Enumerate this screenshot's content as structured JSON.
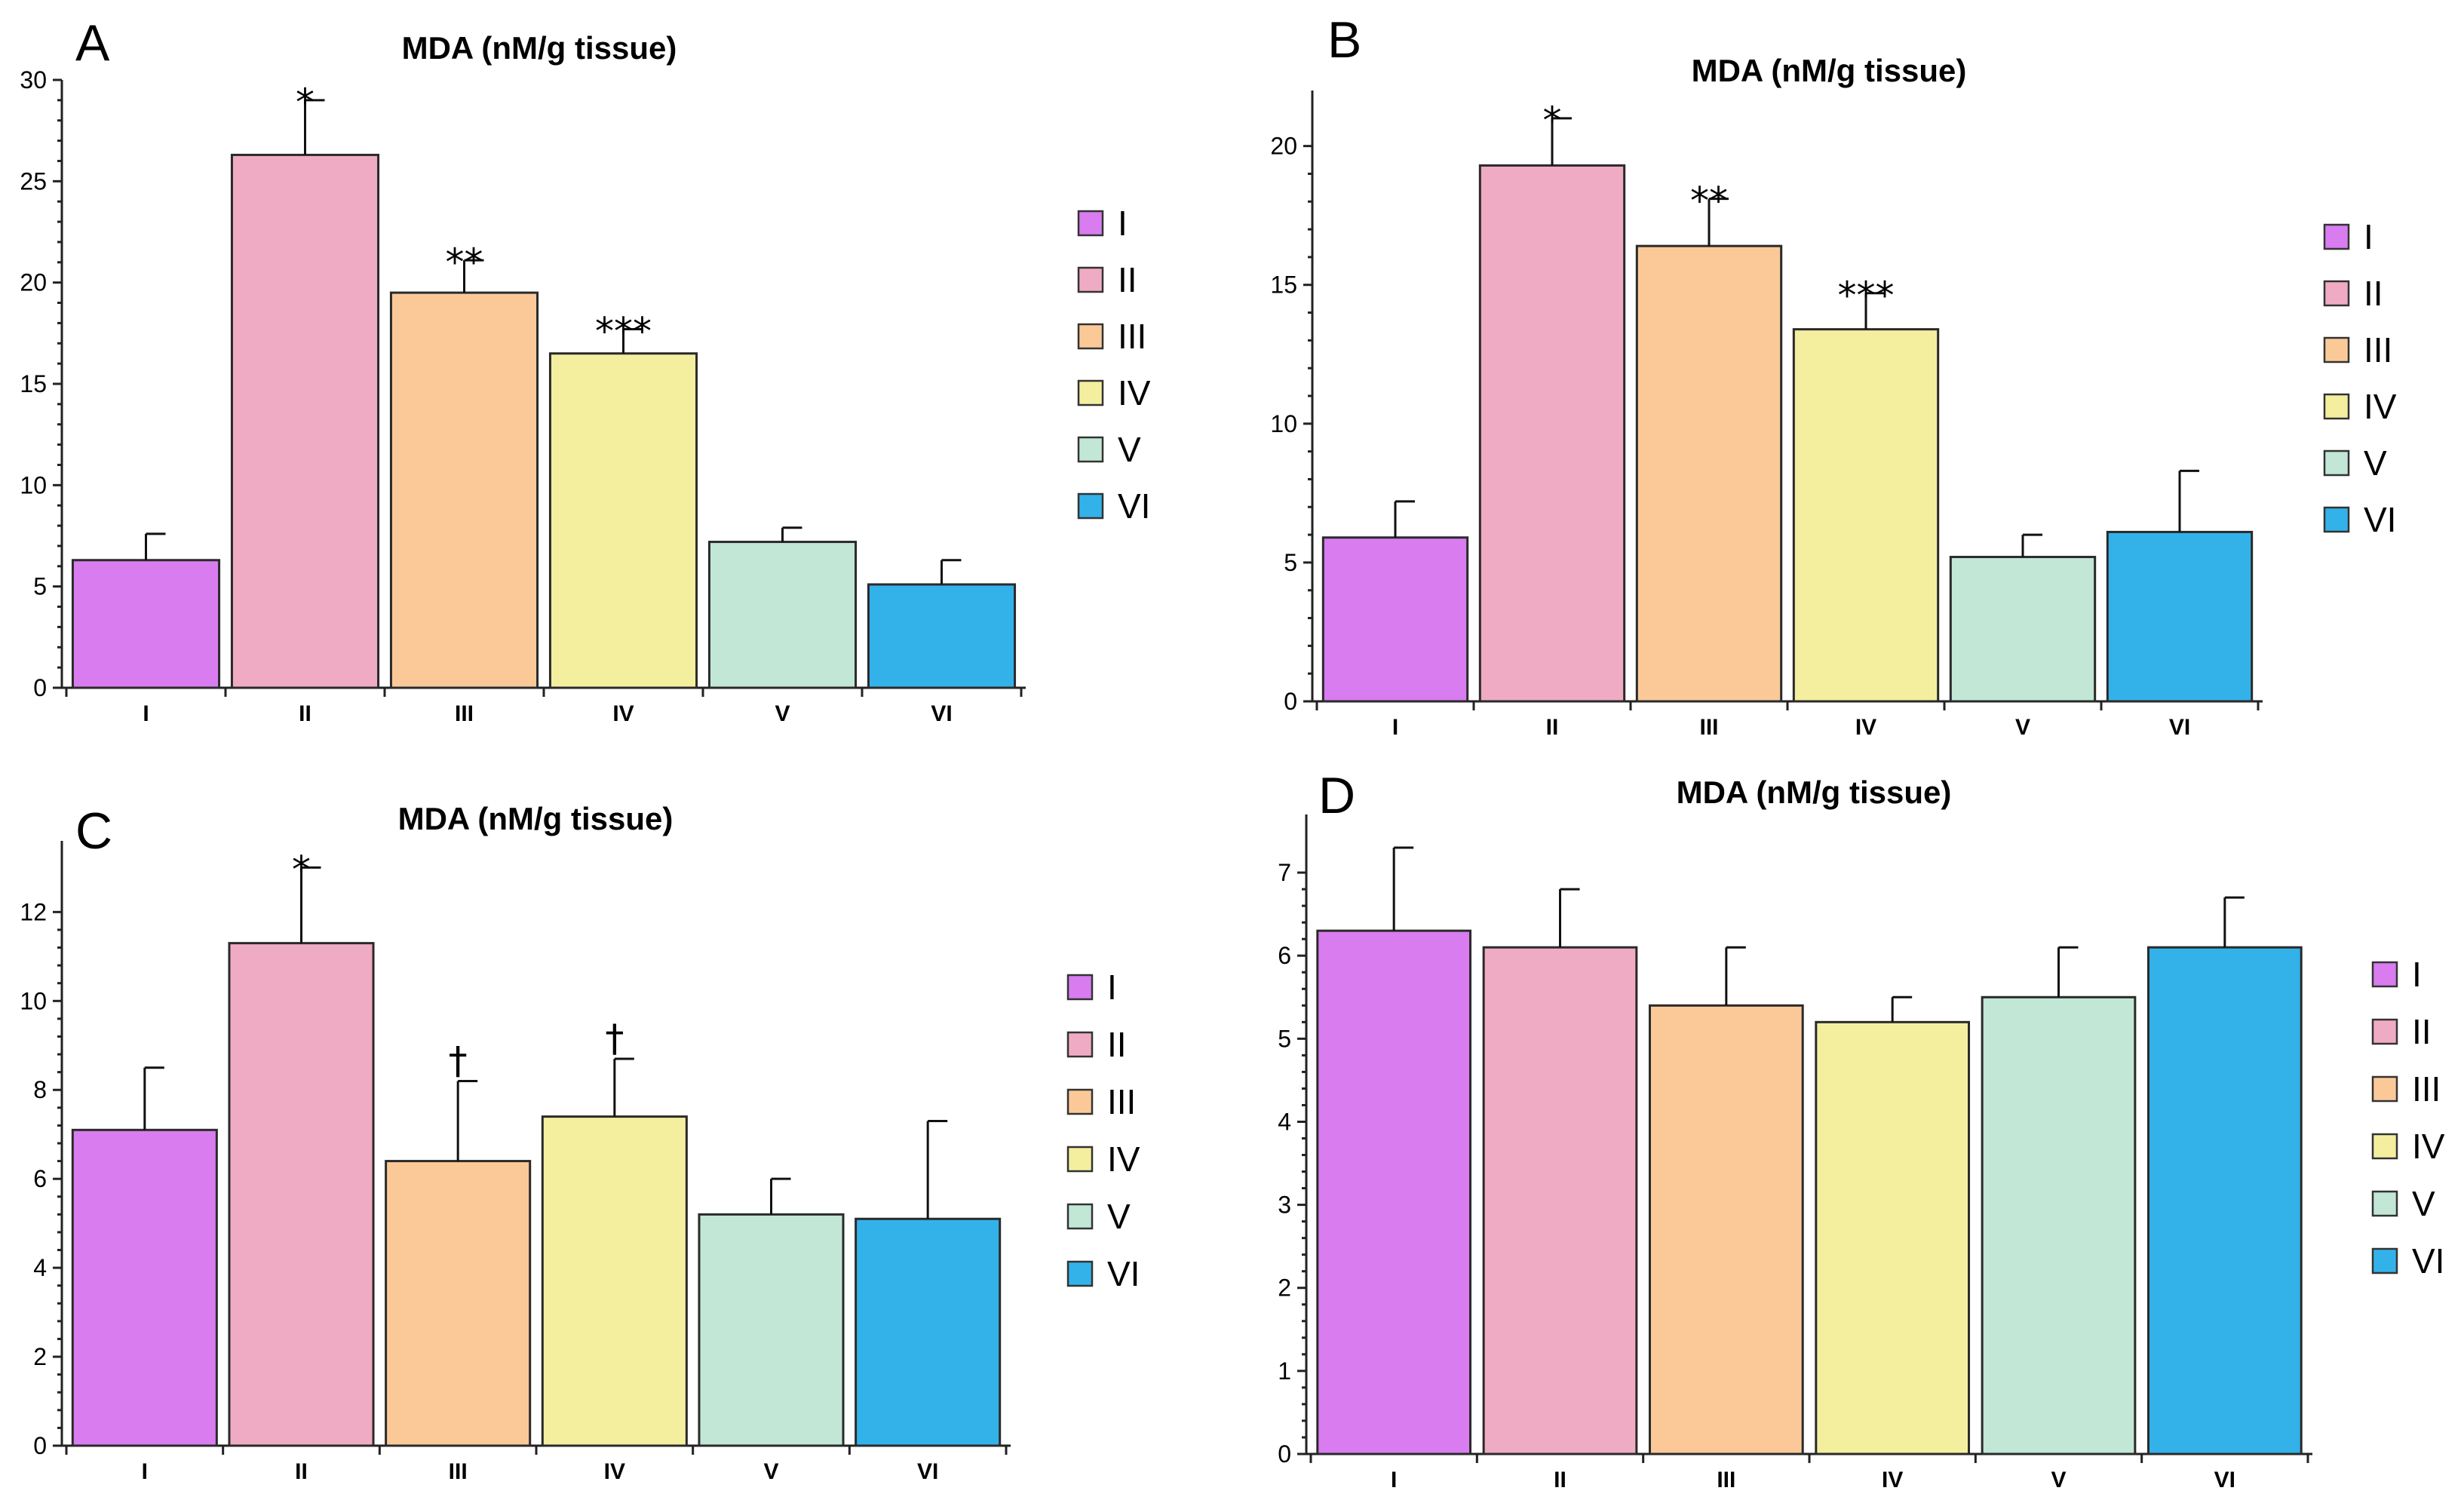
{
  "colors": {
    "I": "#d87cf0",
    "II": "#f0abc4",
    "III": "#fbc998",
    "IV": "#f4ef9e",
    "V": "#c2e7d6",
    "VI": "#33b2ea"
  },
  "chart_data": [
    {
      "panel": "A",
      "type": "bar",
      "title": "MDA (nM/g tissue)",
      "xlabel": "",
      "ylabel": "",
      "categories": [
        "I",
        "II",
        "III",
        "IV",
        "V",
        "VI"
      ],
      "values": [
        6.3,
        26.3,
        19.5,
        16.5,
        7.2,
        5.1
      ],
      "errors": [
        1.3,
        2.7,
        1.6,
        1.2,
        0.7,
        1.2
      ],
      "significance": [
        "",
        "*",
        "**",
        "***",
        "",
        ""
      ],
      "ylim": [
        0,
        30
      ],
      "yticks": [
        0,
        5,
        10,
        15,
        20,
        25,
        30
      ],
      "legend": [
        "I",
        "II",
        "III",
        "IV",
        "V",
        "VI"
      ],
      "legend_position": "right"
    },
    {
      "panel": "B",
      "type": "bar",
      "title": "MDA (nM/g tissue)",
      "xlabel": "",
      "ylabel": "",
      "categories": [
        "I",
        "II",
        "III",
        "IV",
        "V",
        "VI"
      ],
      "values": [
        5.9,
        19.3,
        16.4,
        13.4,
        5.2,
        6.1
      ],
      "errors": [
        1.3,
        1.7,
        1.7,
        1.3,
        0.8,
        2.2
      ],
      "significance": [
        "",
        "*",
        "**",
        "***",
        "",
        ""
      ],
      "ylim": [
        0,
        22
      ],
      "yticks": [
        0,
        5,
        10,
        15,
        20
      ],
      "legend": [
        "I",
        "II",
        "III",
        "IV",
        "V",
        "VI"
      ],
      "legend_position": "right"
    },
    {
      "panel": "C",
      "type": "bar",
      "title": "MDA (nM/g tissue)",
      "xlabel": "",
      "ylabel": "",
      "categories": [
        "I",
        "II",
        "III",
        "IV",
        "V",
        "VI"
      ],
      "values": [
        7.1,
        11.3,
        6.4,
        7.4,
        5.2,
        5.1
      ],
      "errors": [
        1.4,
        1.7,
        1.8,
        1.3,
        0.8,
        2.2
      ],
      "significance": [
        "",
        "*",
        "†",
        "†",
        "",
        ""
      ],
      "ylim": [
        0,
        13.6
      ],
      "yticks": [
        0,
        2,
        4,
        6,
        8,
        10,
        12
      ],
      "legend": [
        "I",
        "II",
        "III",
        "IV",
        "V",
        "VI"
      ],
      "legend_position": "right"
    },
    {
      "panel": "D",
      "type": "bar",
      "title": "MDA (nM/g tissue)",
      "xlabel": "",
      "ylabel": "",
      "categories": [
        "I",
        "II",
        "III",
        "IV",
        "V",
        "VI"
      ],
      "values": [
        6.3,
        6.1,
        5.4,
        5.2,
        5.5,
        6.1
      ],
      "errors": [
        1.0,
        0.7,
        0.7,
        0.3,
        0.6,
        0.6
      ],
      "significance": [
        "",
        "",
        "",
        "",
        "",
        ""
      ],
      "ylim": [
        0,
        7.7
      ],
      "yticks": [
        0,
        1,
        2,
        3,
        4,
        5,
        6,
        7
      ],
      "legend": [
        "I",
        "II",
        "III",
        "IV",
        "V",
        "VI"
      ],
      "legend_position": "right"
    }
  ]
}
